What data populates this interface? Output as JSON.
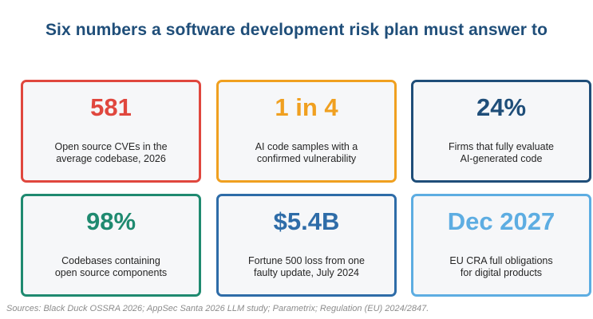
{
  "title": "Six numbers a software development risk plan must answer to",
  "cards": [
    {
      "value": "581",
      "line1": "Open source CVEs in the",
      "line2": "average codebase, 2026",
      "color": "#e0473e"
    },
    {
      "value": "1 in 4",
      "line1": "AI code samples with a",
      "line2": "confirmed vulnerability",
      "color": "#f0a020"
    },
    {
      "value": "24%",
      "line1": "Firms that fully evaluate",
      "line2": "AI-generated code",
      "color": "#1f4e79"
    },
    {
      "value": "98%",
      "line1": "Codebases containing",
      "line2": "open source components",
      "color": "#1f8a70"
    },
    {
      "value": "$5.4B",
      "line1": "Fortune 500 loss from one",
      "line2": "faulty update, July 2024",
      "color": "#2e6ca8"
    },
    {
      "value": "Dec 2027",
      "line1": "EU CRA full obligations",
      "line2": "for digital products",
      "color": "#5dade2"
    }
  ],
  "sources": "Sources: Black Duck OSSRA 2026; AppSec Santa 2026 LLM study; Parametrix; Regulation (EU) 2024/2847."
}
